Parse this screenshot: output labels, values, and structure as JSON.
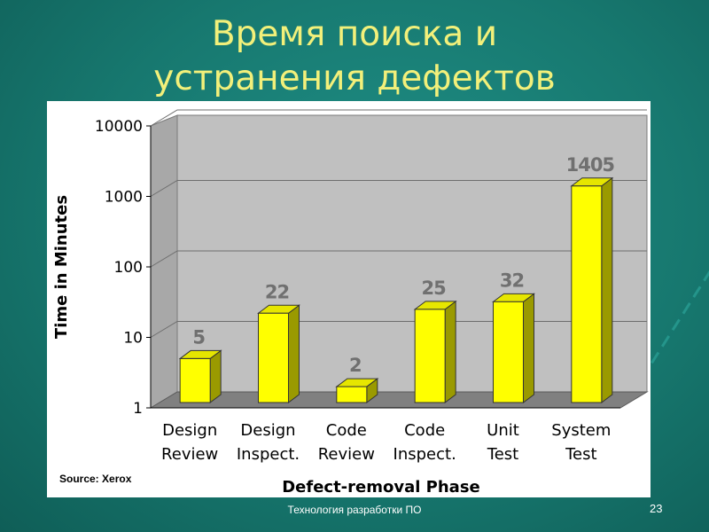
{
  "slide": {
    "title_line1": "Время поиска и",
    "title_line2": "устранения дефектов",
    "footer": "Технология разработки ПО",
    "page_number": "23"
  },
  "colors": {
    "background": "#17786f",
    "title": "#f2f07a",
    "bar_front": "#ffff00",
    "bar_side": "#9a9a00",
    "bar_top": "#e6e600",
    "plot_back": "#c0c0c0",
    "plot_floor": "#808080",
    "data_label": "#707070"
  },
  "chart_data": {
    "type": "bar",
    "xlabel": "Defect-removal Phase",
    "ylabel": "Time in Minutes",
    "yscale": "log",
    "ylim": [
      1,
      10000
    ],
    "yticks": [
      "10000",
      "1000",
      "100",
      "10",
      "1"
    ],
    "categories": [
      [
        "Design",
        "Review"
      ],
      [
        "Design",
        "Inspect."
      ],
      [
        "Code",
        "Review"
      ],
      [
        "Code",
        "Inspect."
      ],
      [
        "Unit",
        "Test"
      ],
      [
        "System",
        "Test"
      ]
    ],
    "values": [
      5,
      22,
      2,
      25,
      32,
      1405
    ],
    "data_labels": [
      "5",
      "22",
      "2",
      "25",
      "32",
      "1405"
    ],
    "source": "Source: Xerox",
    "grid": true,
    "legend": "none"
  }
}
